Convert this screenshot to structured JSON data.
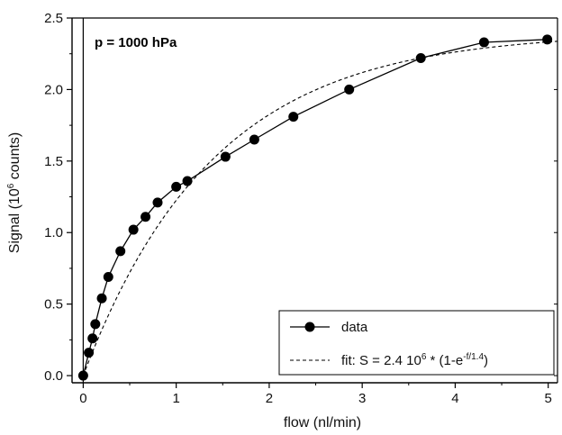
{
  "chart_data": {
    "type": "line",
    "title": "",
    "annotation": "p = 1000 hPa",
    "xlabel": "flow (nl/min)",
    "ylabel": {
      "pre": "Signal (10",
      "sup": "6",
      "post": " counts)"
    },
    "xlim": [
      -0.12,
      5.1
    ],
    "ylim": [
      -0.05,
      2.5
    ],
    "xticks": [
      0,
      1,
      2,
      3,
      4,
      5
    ],
    "yticks": [
      0.0,
      0.5,
      1.0,
      1.5,
      2.0,
      2.5
    ],
    "xtick_labels": [
      "0",
      "1",
      "2",
      "3",
      "4",
      "5"
    ],
    "ytick_labels": [
      "0.0",
      "0.5",
      "1.0",
      "1.5",
      "2.0",
      "2.5"
    ],
    "grid": false,
    "legend_position": "bottom-right",
    "series": [
      {
        "name": "data",
        "style": "solid-line-with-filled-circles",
        "x": [
          0.0,
          0.06,
          0.1,
          0.13,
          0.2,
          0.27,
          0.4,
          0.54,
          0.67,
          0.8,
          1.0,
          1.12,
          1.53,
          1.84,
          2.26,
          2.86,
          3.63,
          4.31,
          4.99
        ],
        "y": [
          0.0,
          0.16,
          0.26,
          0.36,
          0.54,
          0.69,
          0.87,
          1.02,
          1.11,
          1.21,
          1.32,
          1.36,
          1.53,
          1.65,
          1.81,
          2.0,
          2.22,
          2.33,
          2.35
        ]
      },
      {
        "name": {
          "prefix": "fit: S = 2.4 10",
          "sup1": "6",
          "mid": " * (1-e",
          "sup2": "-f/1.4",
          "suffix": ")"
        },
        "style": "dashed-line",
        "formula": "S = 2.4e6 * (1 - exp(-f/1.4))",
        "amplitude": 2.4,
        "tau": 1.4
      }
    ]
  }
}
